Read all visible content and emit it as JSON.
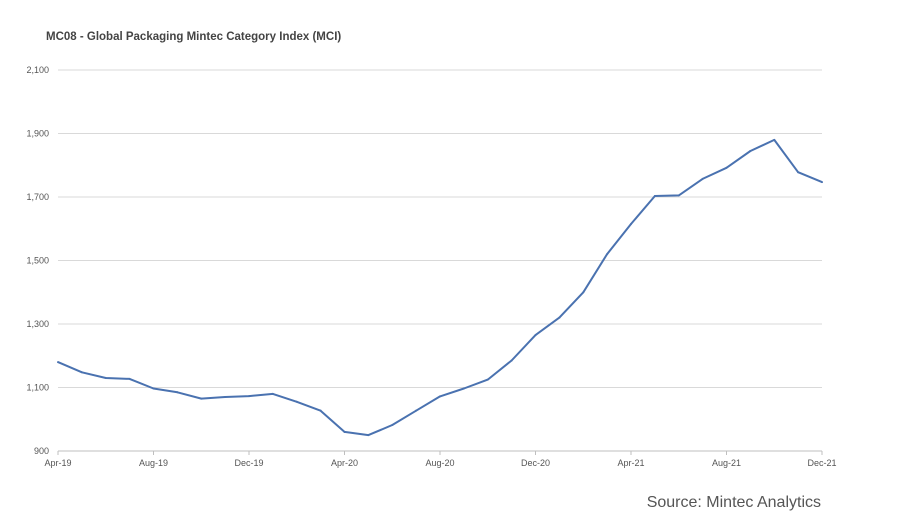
{
  "chart_data": {
    "type": "line",
    "title": "MC08 - Global Packaging Mintec Category Index  (MCI)",
    "source": "Source: Mintec Analytics",
    "x_tick_labels": [
      "Apr-19",
      "Aug-19",
      "Dec-19",
      "Apr-20",
      "Aug-20",
      "Dec-20",
      "Apr-21",
      "Aug-21",
      "Dec-21"
    ],
    "y_tick_labels": [
      "900",
      "1,100",
      "1,300",
      "1,500",
      "1,700",
      "1,900",
      "2,100"
    ],
    "ylim": [
      900,
      2100
    ],
    "y_ticks": [
      900,
      1100,
      1300,
      1500,
      1700,
      1900,
      2100
    ],
    "grid": true,
    "series": [
      {
        "color": "#4a72b0",
        "x": [
          "Apr-19",
          "May-19",
          "Jun-19",
          "Jul-19",
          "Aug-19",
          "Sep-19",
          "Oct-19",
          "Nov-19",
          "Dec-19",
          "Jan-20",
          "Feb-20",
          "Mar-20",
          "Apr-20",
          "May-20",
          "Jun-20",
          "Jul-20",
          "Aug-20",
          "Sep-20",
          "Oct-20",
          "Nov-20",
          "Dec-20",
          "Jan-21",
          "Feb-21",
          "Mar-21",
          "Apr-21",
          "May-21",
          "Jun-21",
          "Jul-21",
          "Aug-21",
          "Sep-21",
          "Oct-21",
          "Nov-21",
          "Dec-21"
        ],
        "values": [
          1180,
          1148,
          1130,
          1127,
          1097,
          1085,
          1065,
          1070,
          1073,
          1080,
          1055,
          1027,
          960,
          950,
          982,
          1027,
          1072,
          1097,
          1125,
          1185,
          1265,
          1320,
          1400,
          1520,
          1615,
          1703,
          1705,
          1757,
          1792,
          1845,
          1880,
          1778,
          1747
        ]
      }
    ]
  }
}
